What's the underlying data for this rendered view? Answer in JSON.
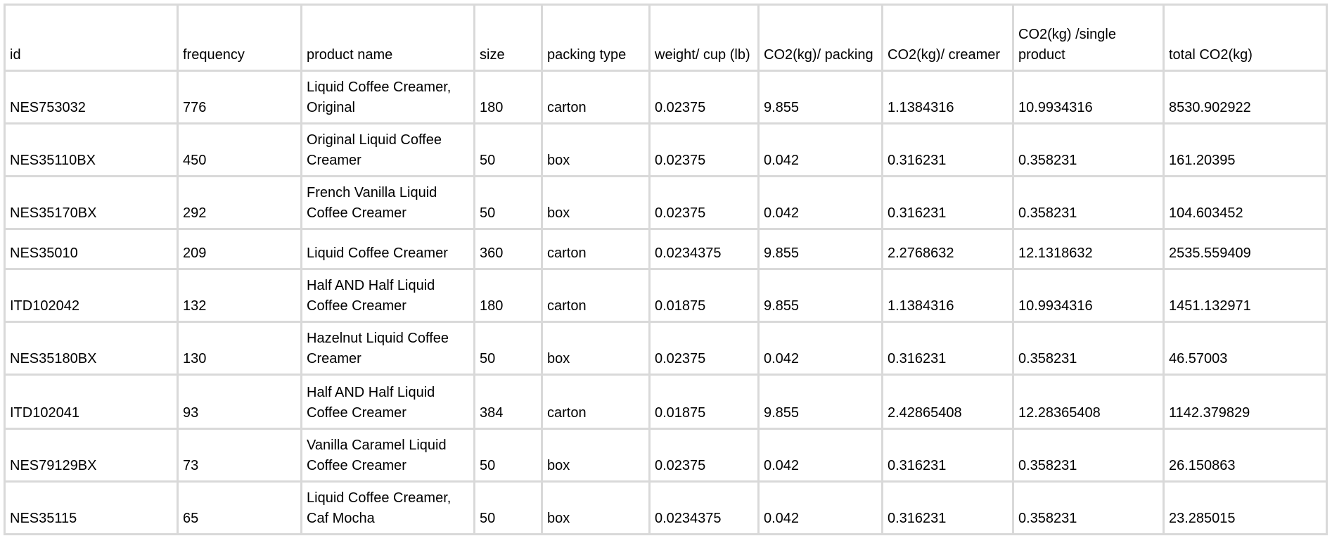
{
  "table": {
    "columns": [
      "id",
      "frequency",
      "product name",
      "size",
      "packing type",
      "weight/ cup (lb)",
      "CO2(kg)/ packing",
      "CO2(kg)/ creamer",
      "CO2(kg) /single product",
      "total CO2(kg)"
    ],
    "rows": [
      [
        "NES753032",
        "776",
        "Liquid Coffee Creamer, Original",
        "180",
        "carton",
        "0.02375",
        "9.855",
        "1.1384316",
        "10.9934316",
        "8530.902922"
      ],
      [
        "NES35110BX",
        "450",
        "Original Liquid Coffee Creamer",
        "50",
        "box",
        "0.02375",
        "0.042",
        "0.316231",
        "0.358231",
        "161.20395"
      ],
      [
        "NES35170BX",
        "292",
        "French Vanilla Liquid Coffee Creamer",
        "50",
        "box",
        "0.02375",
        "0.042",
        "0.316231",
        "0.358231",
        "104.603452"
      ],
      [
        "NES35010",
        "209",
        "Liquid Coffee Creamer",
        "360",
        "carton",
        "0.0234375",
        "9.855",
        "2.2768632",
        "12.1318632",
        "2535.559409"
      ],
      [
        "ITD102042",
        "132",
        "Half AND Half Liquid Coffee Creamer",
        "180",
        "carton",
        "0.01875",
        "9.855",
        "1.1384316",
        "10.9934316",
        "1451.132971"
      ],
      [
        "NES35180BX",
        "130",
        "Hazelnut Liquid Coffee Creamer",
        "50",
        "box",
        "0.02375",
        "0.042",
        "0.316231",
        "0.358231",
        "46.57003"
      ],
      [
        "ITD102041",
        "93",
        "Half AND Half Liquid Coffee Creamer",
        "384",
        "carton",
        "0.01875",
        "9.855",
        "2.42865408",
        "12.28365408",
        "1142.379829"
      ],
      [
        "NES79129BX",
        "73",
        "Vanilla Caramel Liquid Coffee Creamer",
        "50",
        "box",
        "0.02375",
        "0.042",
        "0.316231",
        "0.358231",
        "26.150863"
      ],
      [
        "NES35115",
        "65",
        "Liquid Coffee Creamer, Caf Mocha",
        "50",
        "box",
        "0.0234375",
        "0.042",
        "0.316231",
        "0.358231",
        "23.285015"
      ]
    ]
  }
}
